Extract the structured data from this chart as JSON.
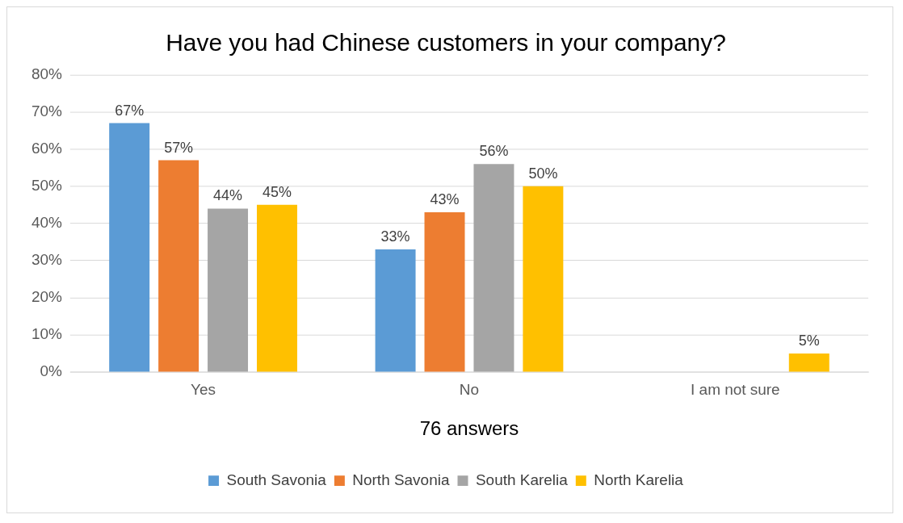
{
  "chart_data": {
    "type": "bar",
    "title": "Have you had Chinese customers in your company?",
    "xlabel": "76 answers",
    "categories": [
      "Yes",
      "No",
      "I am not sure"
    ],
    "series": [
      {
        "name": "South Savonia",
        "color": "#5b9bd5",
        "values": [
          67,
          33,
          0
        ],
        "value_labels": [
          "67%",
          "33%",
          null
        ]
      },
      {
        "name": "North Savonia",
        "color": "#ed7d31",
        "values": [
          57,
          43,
          0
        ],
        "value_labels": [
          "57%",
          "43%",
          null
        ]
      },
      {
        "name": "South Karelia",
        "color": "#a5a5a5",
        "values": [
          44,
          56,
          0
        ],
        "value_labels": [
          "44%",
          "56%",
          null
        ]
      },
      {
        "name": "North Karelia",
        "color": "#ffc000",
        "values": [
          45,
          50,
          5
        ],
        "value_labels": [
          "45%",
          "50%",
          "5%"
        ]
      }
    ],
    "ylim": [
      0,
      80
    ],
    "yticks": [
      {
        "value": 0,
        "label": "0%"
      },
      {
        "value": 10,
        "label": "10%"
      },
      {
        "value": 20,
        "label": "20%"
      },
      {
        "value": 30,
        "label": "30%"
      },
      {
        "value": 40,
        "label": "40%"
      },
      {
        "value": 50,
        "label": "50%"
      },
      {
        "value": 60,
        "label": "60%"
      },
      {
        "value": 70,
        "label": "70%"
      },
      {
        "value": 80,
        "label": "80%"
      }
    ],
    "grid": "y",
    "legend": "bottom"
  }
}
